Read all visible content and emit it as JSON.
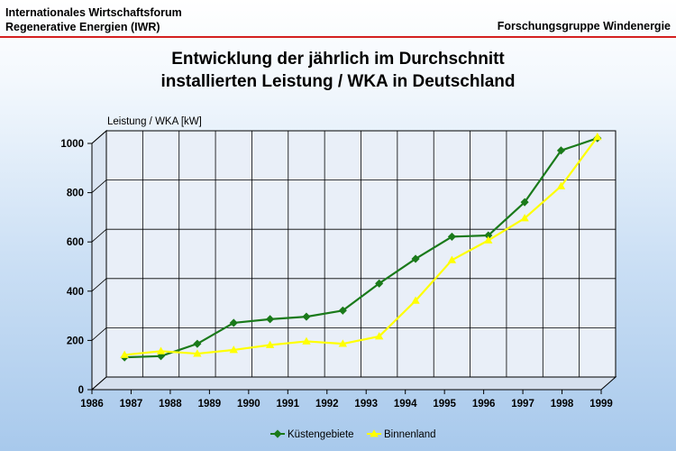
{
  "header": {
    "org_line1": "Internationales Wirtschaftsforum",
    "org_line2": "Regenerative Energien (IWR)",
    "right": "Forschungsgruppe Windenergie"
  },
  "title_line1": "Entwicklung der jährlich im Durchschnitt",
  "title_line2": "installierten Leistung / WKA in Deutschland",
  "chart_data": {
    "type": "line",
    "title": "Entwicklung der jährlich im Durchschnitt installierten Leistung / WKA in Deutschland",
    "ylabel": "Leistung / WKA [kW]",
    "xlabel": "",
    "categories": [
      "1986",
      "1987",
      "1988",
      "1989",
      "1990",
      "1991",
      "1992",
      "1993",
      "1994",
      "1995",
      "1996",
      "1997",
      "1998",
      "1999"
    ],
    "ylim": [
      0,
      1000
    ],
    "yticks": [
      0,
      200,
      400,
      600,
      800,
      1000
    ],
    "grid": true,
    "legend_position": "bottom",
    "series": [
      {
        "name": "Küstengebiete",
        "color": "#1a7a1a",
        "marker": "diamond",
        "values": [
          80,
          85,
          135,
          220,
          235,
          245,
          270,
          380,
          480,
          570,
          575,
          710,
          920,
          970
        ]
      },
      {
        "name": "Binnenland",
        "color": "#ffff00",
        "marker": "triangle",
        "values": [
          90,
          105,
          95,
          110,
          130,
          145,
          135,
          165,
          310,
          475,
          555,
          645,
          775,
          975
        ]
      }
    ]
  }
}
